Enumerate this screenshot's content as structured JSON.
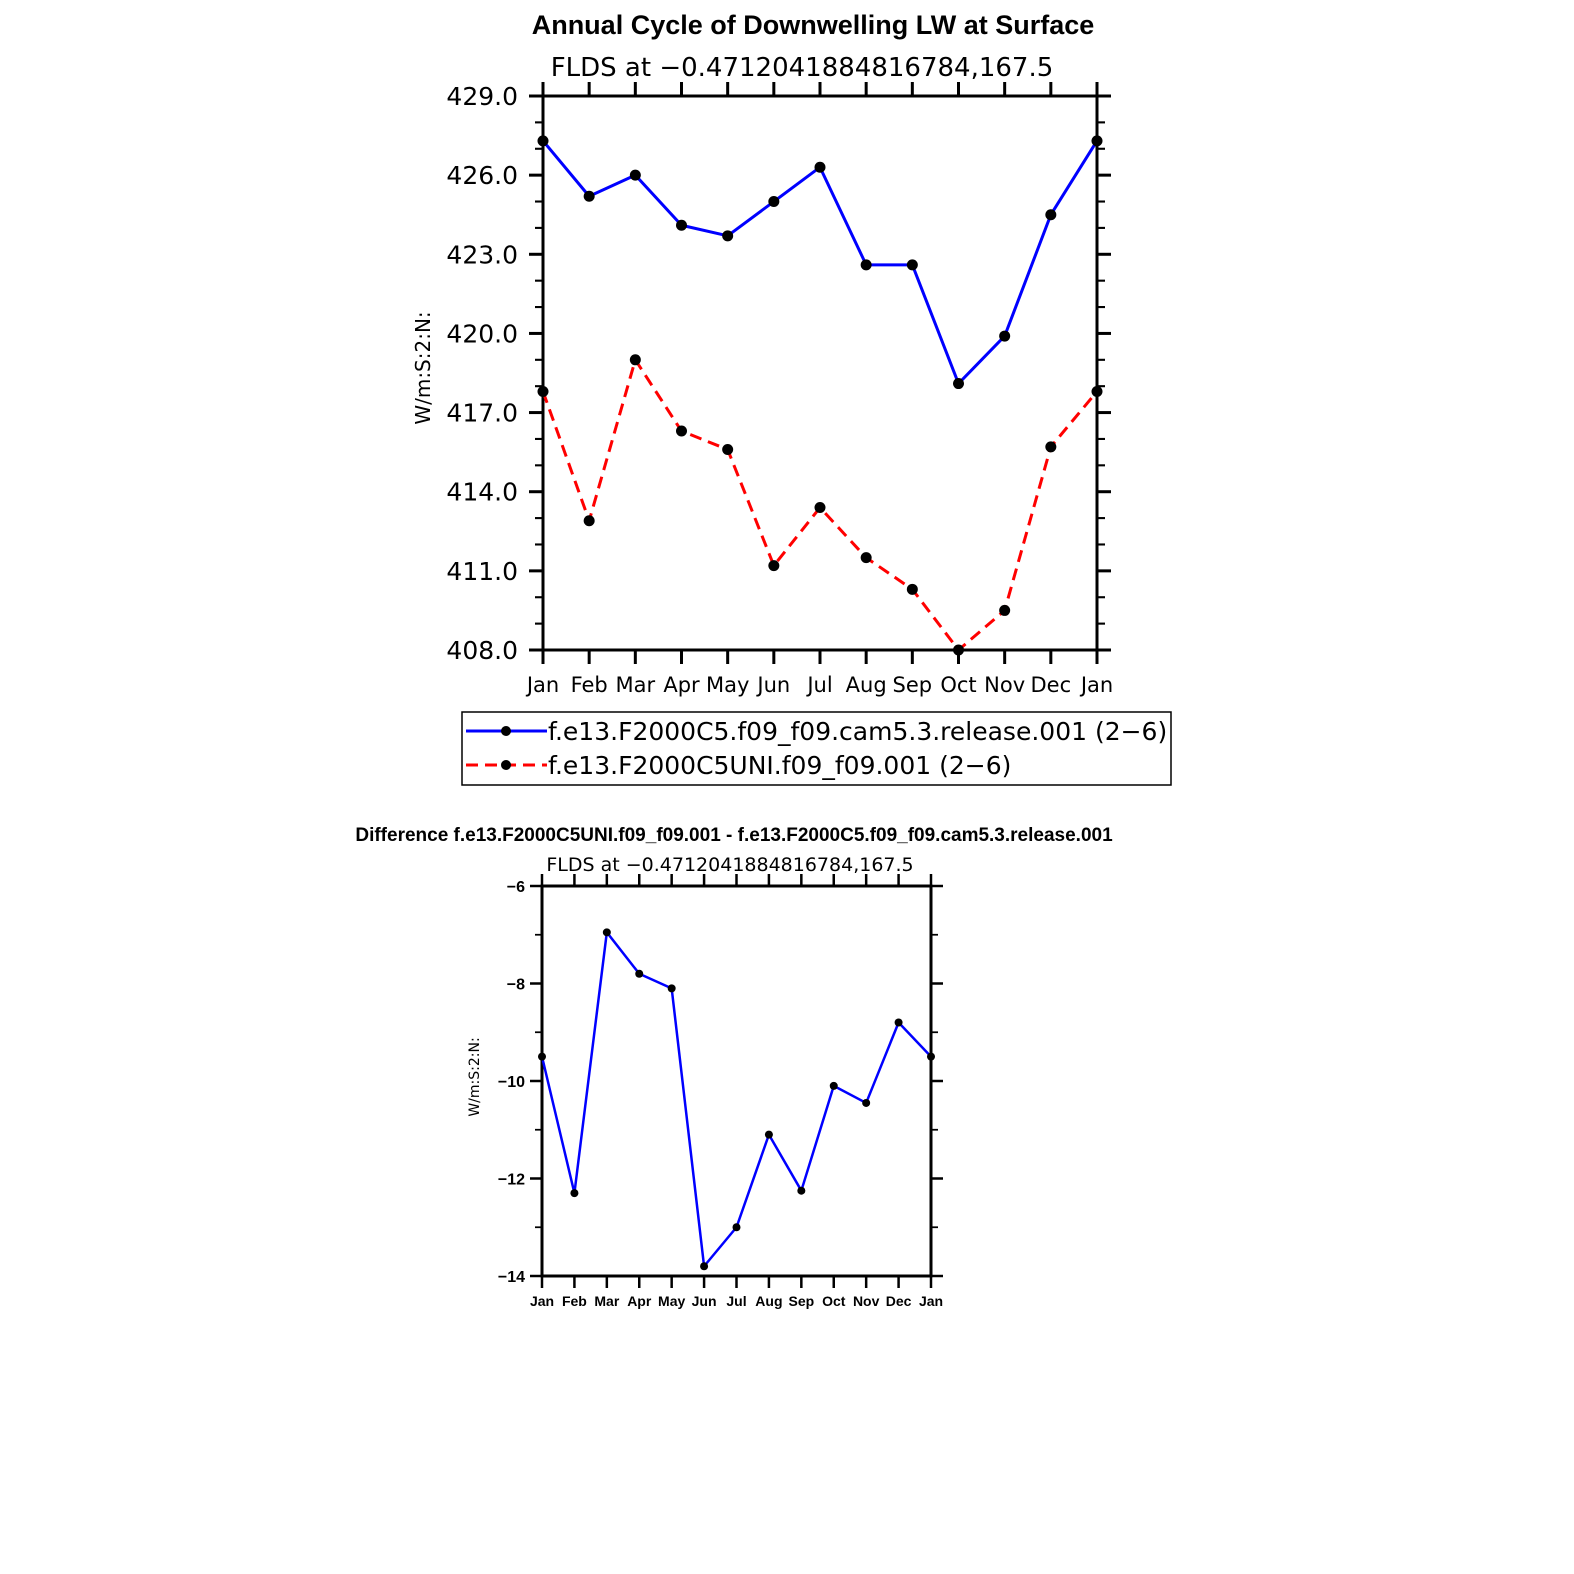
{
  "figure_title": "Annual Cycle of Downwelling LW at Surface",
  "difference_title": "Difference f.e13.F2000C5UNI.f09_f09.001 - f.e13.F2000C5.f09_f09.cam5.3.release.001",
  "chart_data": [
    {
      "type": "line",
      "title": "Annual Cycle of Downwelling LW at Surface",
      "subtitle": "FLDS at −0.4712041884816784,167.5",
      "xlabel": "",
      "ylabel": "W/m:S:2:N:",
      "categories": [
        "Jan",
        "Feb",
        "Mar",
        "Apr",
        "May",
        "Jun",
        "Jul",
        "Aug",
        "Sep",
        "Oct",
        "Nov",
        "Dec",
        "Jan"
      ],
      "yticks": [
        "408.0",
        "411.0",
        "414.0",
        "417.0",
        "420.0",
        "423.0",
        "426.0",
        "429.0"
      ],
      "ylim": [
        408,
        429
      ],
      "legend_position": "bottom",
      "series": [
        {
          "name": "f.e13.F2000C5.f09_f09.cam5.3.release.001 (2−6)",
          "color": "#0000ff",
          "dash": "solid",
          "values": [
            427.3,
            425.2,
            426.0,
            424.1,
            423.7,
            425.0,
            426.3,
            422.6,
            422.6,
            418.1,
            419.9,
            424.5,
            427.3
          ]
        },
        {
          "name": "f.e13.F2000C5UNI.f09_f09.001 (2−6)",
          "color": "#ff0000",
          "dash": "dashed",
          "values": [
            417.8,
            412.9,
            419.0,
            416.3,
            415.6,
            411.2,
            413.4,
            411.5,
            410.3,
            408.0,
            409.5,
            415.7,
            417.8
          ]
        }
      ]
    },
    {
      "type": "line",
      "title": "Difference f.e13.F2000C5UNI.f09_f09.001 - f.e13.F2000C5.f09_f09.cam5.3.release.001",
      "subtitle": "FLDS at −0.4712041884816784,167.5",
      "xlabel": "",
      "ylabel": "W/m:S:2:N:",
      "categories": [
        "Jan",
        "Feb",
        "Mar",
        "Apr",
        "May",
        "Jun",
        "Jul",
        "Aug",
        "Sep",
        "Oct",
        "Nov",
        "Dec",
        "Jan"
      ],
      "yticks": [
        "−14",
        "−12",
        "−10",
        "−8",
        "−6"
      ],
      "ylim": [
        -14,
        -6
      ],
      "series": [
        {
          "color": "#0000ff",
          "dash": "solid",
          "values": [
            -9.5,
            -12.3,
            -6.95,
            -7.8,
            -8.1,
            -13.8,
            -13.0,
            -11.1,
            -12.25,
            -10.1,
            -10.45,
            -8.8,
            -9.5
          ]
        }
      ]
    }
  ]
}
